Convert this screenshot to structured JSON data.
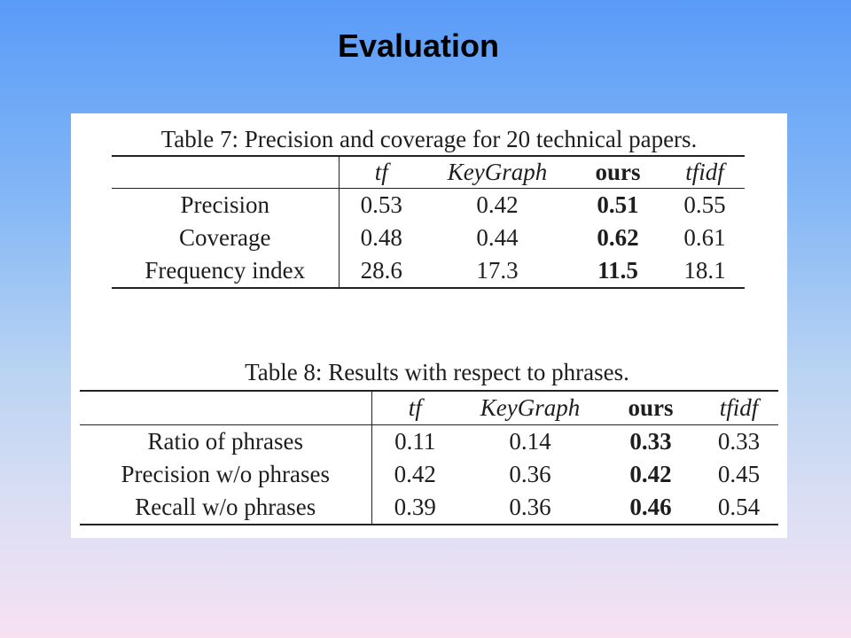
{
  "slide": {
    "title": "Evaluation"
  },
  "tables": [
    {
      "caption": "Table 7: Precision and coverage for 20 technical papers.",
      "columns": [
        "tf",
        "KeyGraph",
        "ours",
        "tfidf"
      ],
      "rows": [
        {
          "label": "Precision",
          "values": [
            "0.53",
            "0.42",
            "0.51",
            "0.55"
          ]
        },
        {
          "label": "Coverage",
          "values": [
            "0.48",
            "0.44",
            "0.62",
            "0.61"
          ]
        },
        {
          "label": "Frequency index",
          "values": [
            "28.6",
            "17.3",
            "11.5",
            "18.1"
          ]
        }
      ]
    },
    {
      "caption": "Table 8: Results with respect to phrases.",
      "columns": [
        "tf",
        "KeyGraph",
        "ours",
        "tfidf"
      ],
      "rows": [
        {
          "label": "Ratio of phrases",
          "values": [
            "0.11",
            "0.14",
            "0.33",
            "0.33"
          ]
        },
        {
          "label": "Precision w/o phrases",
          "values": [
            "0.42",
            "0.36",
            "0.42",
            "0.45"
          ]
        },
        {
          "label": "Recall w/o phrases",
          "values": [
            "0.39",
            "0.36",
            "0.46",
            "0.54"
          ]
        }
      ]
    }
  ]
}
